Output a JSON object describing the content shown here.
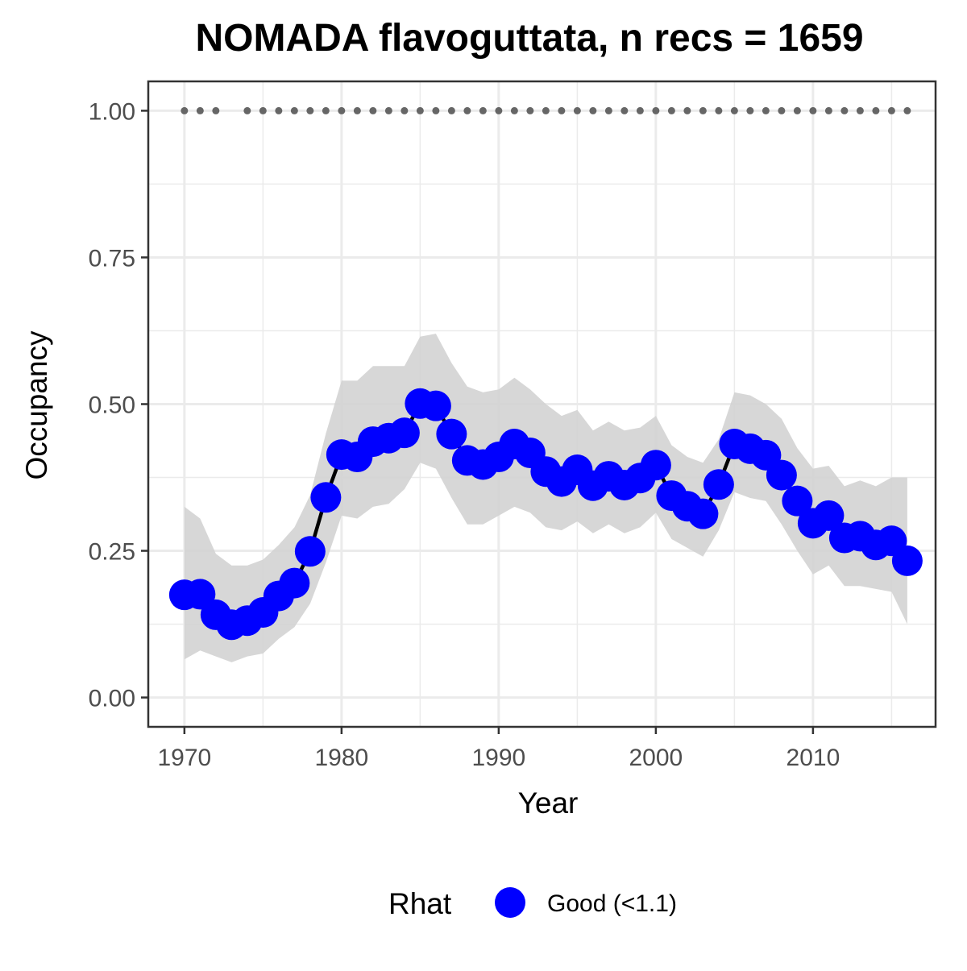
{
  "chart_data": {
    "type": "line",
    "title": "NOMADA flavoguttata, n recs = 1659",
    "xlabel": "Year",
    "ylabel": "Occupancy",
    "xlim": [
      1967.7,
      2017.8
    ],
    "ylim": [
      -0.05,
      1.05
    ],
    "x_ticks": [
      1970,
      1980,
      1990,
      2000,
      2010
    ],
    "x_tick_labels": [
      "1970",
      "1980",
      "1990",
      "2000",
      "2010"
    ],
    "y_ticks": [
      0,
      0.25,
      0.5,
      0.75,
      1.0
    ],
    "y_tick_labels": [
      "0.00",
      "0.25",
      "0.50",
      "0.75",
      "1.00"
    ],
    "grid": true,
    "legend": {
      "title": "Rhat",
      "placement": "bottom",
      "entries": [
        {
          "label": "Good (<1.1)",
          "color": "#0000ff"
        }
      ]
    },
    "colors": {
      "points": "#0000ff",
      "line": "#000000",
      "ribbon": "#d3d3d3",
      "record_dots": "#666666",
      "grid": "#ebebeb",
      "panel_border": "#333333"
    },
    "series": [
      {
        "name": "Good (<1.1)",
        "x": [
          1970,
          1971,
          1972,
          1973,
          1974,
          1975,
          1976,
          1977,
          1978,
          1979,
          1980,
          1981,
          1982,
          1983,
          1984,
          1985,
          1986,
          1987,
          1988,
          1989,
          1990,
          1991,
          1992,
          1993,
          1994,
          1995,
          1996,
          1997,
          1998,
          1999,
          2000,
          2001,
          2002,
          2003,
          2004,
          2005,
          2006,
          2007,
          2008,
          2009,
          2010,
          2011,
          2012,
          2013,
          2014,
          2015,
          2016
        ],
        "y": [
          0.175,
          0.176,
          0.141,
          0.124,
          0.131,
          0.145,
          0.173,
          0.195,
          0.249,
          0.341,
          0.414,
          0.41,
          0.436,
          0.442,
          0.451,
          0.501,
          0.497,
          0.449,
          0.404,
          0.397,
          0.41,
          0.432,
          0.417,
          0.385,
          0.368,
          0.388,
          0.361,
          0.377,
          0.362,
          0.374,
          0.396,
          0.344,
          0.326,
          0.313,
          0.363,
          0.432,
          0.424,
          0.413,
          0.379,
          0.335,
          0.297,
          0.31,
          0.272,
          0.275,
          0.26,
          0.267,
          0.233
        ],
        "lower": [
          0.065,
          0.08,
          0.07,
          0.06,
          0.07,
          0.075,
          0.1,
          0.12,
          0.16,
          0.23,
          0.31,
          0.305,
          0.325,
          0.33,
          0.355,
          0.4,
          0.39,
          0.34,
          0.295,
          0.295,
          0.31,
          0.325,
          0.315,
          0.29,
          0.285,
          0.3,
          0.28,
          0.295,
          0.28,
          0.29,
          0.315,
          0.27,
          0.255,
          0.24,
          0.285,
          0.35,
          0.34,
          0.335,
          0.295,
          0.25,
          0.21,
          0.225,
          0.19,
          0.19,
          0.185,
          0.18,
          0.125
        ],
        "upper": [
          0.325,
          0.305,
          0.245,
          0.225,
          0.225,
          0.235,
          0.26,
          0.29,
          0.345,
          0.45,
          0.54,
          0.54,
          0.565,
          0.565,
          0.565,
          0.615,
          0.62,
          0.57,
          0.53,
          0.52,
          0.525,
          0.545,
          0.525,
          0.5,
          0.48,
          0.49,
          0.455,
          0.47,
          0.455,
          0.46,
          0.48,
          0.43,
          0.41,
          0.4,
          0.44,
          0.52,
          0.515,
          0.5,
          0.475,
          0.425,
          0.39,
          0.395,
          0.36,
          0.37,
          0.36,
          0.375,
          0.375
        ]
      }
    ],
    "record_years": [
      1970,
      1971,
      1972,
      1974,
      1975,
      1976,
      1977,
      1978,
      1979,
      1980,
      1981,
      1982,
      1983,
      1984,
      1985,
      1986,
      1987,
      1988,
      1989,
      1990,
      1991,
      1992,
      1993,
      1994,
      1995,
      1996,
      1997,
      1998,
      1999,
      2000,
      2001,
      2002,
      2003,
      2004,
      2005,
      2006,
      2007,
      2008,
      2009,
      2010,
      2011,
      2012,
      2013,
      2014,
      2015,
      2016
    ],
    "record_value": 1.0
  }
}
